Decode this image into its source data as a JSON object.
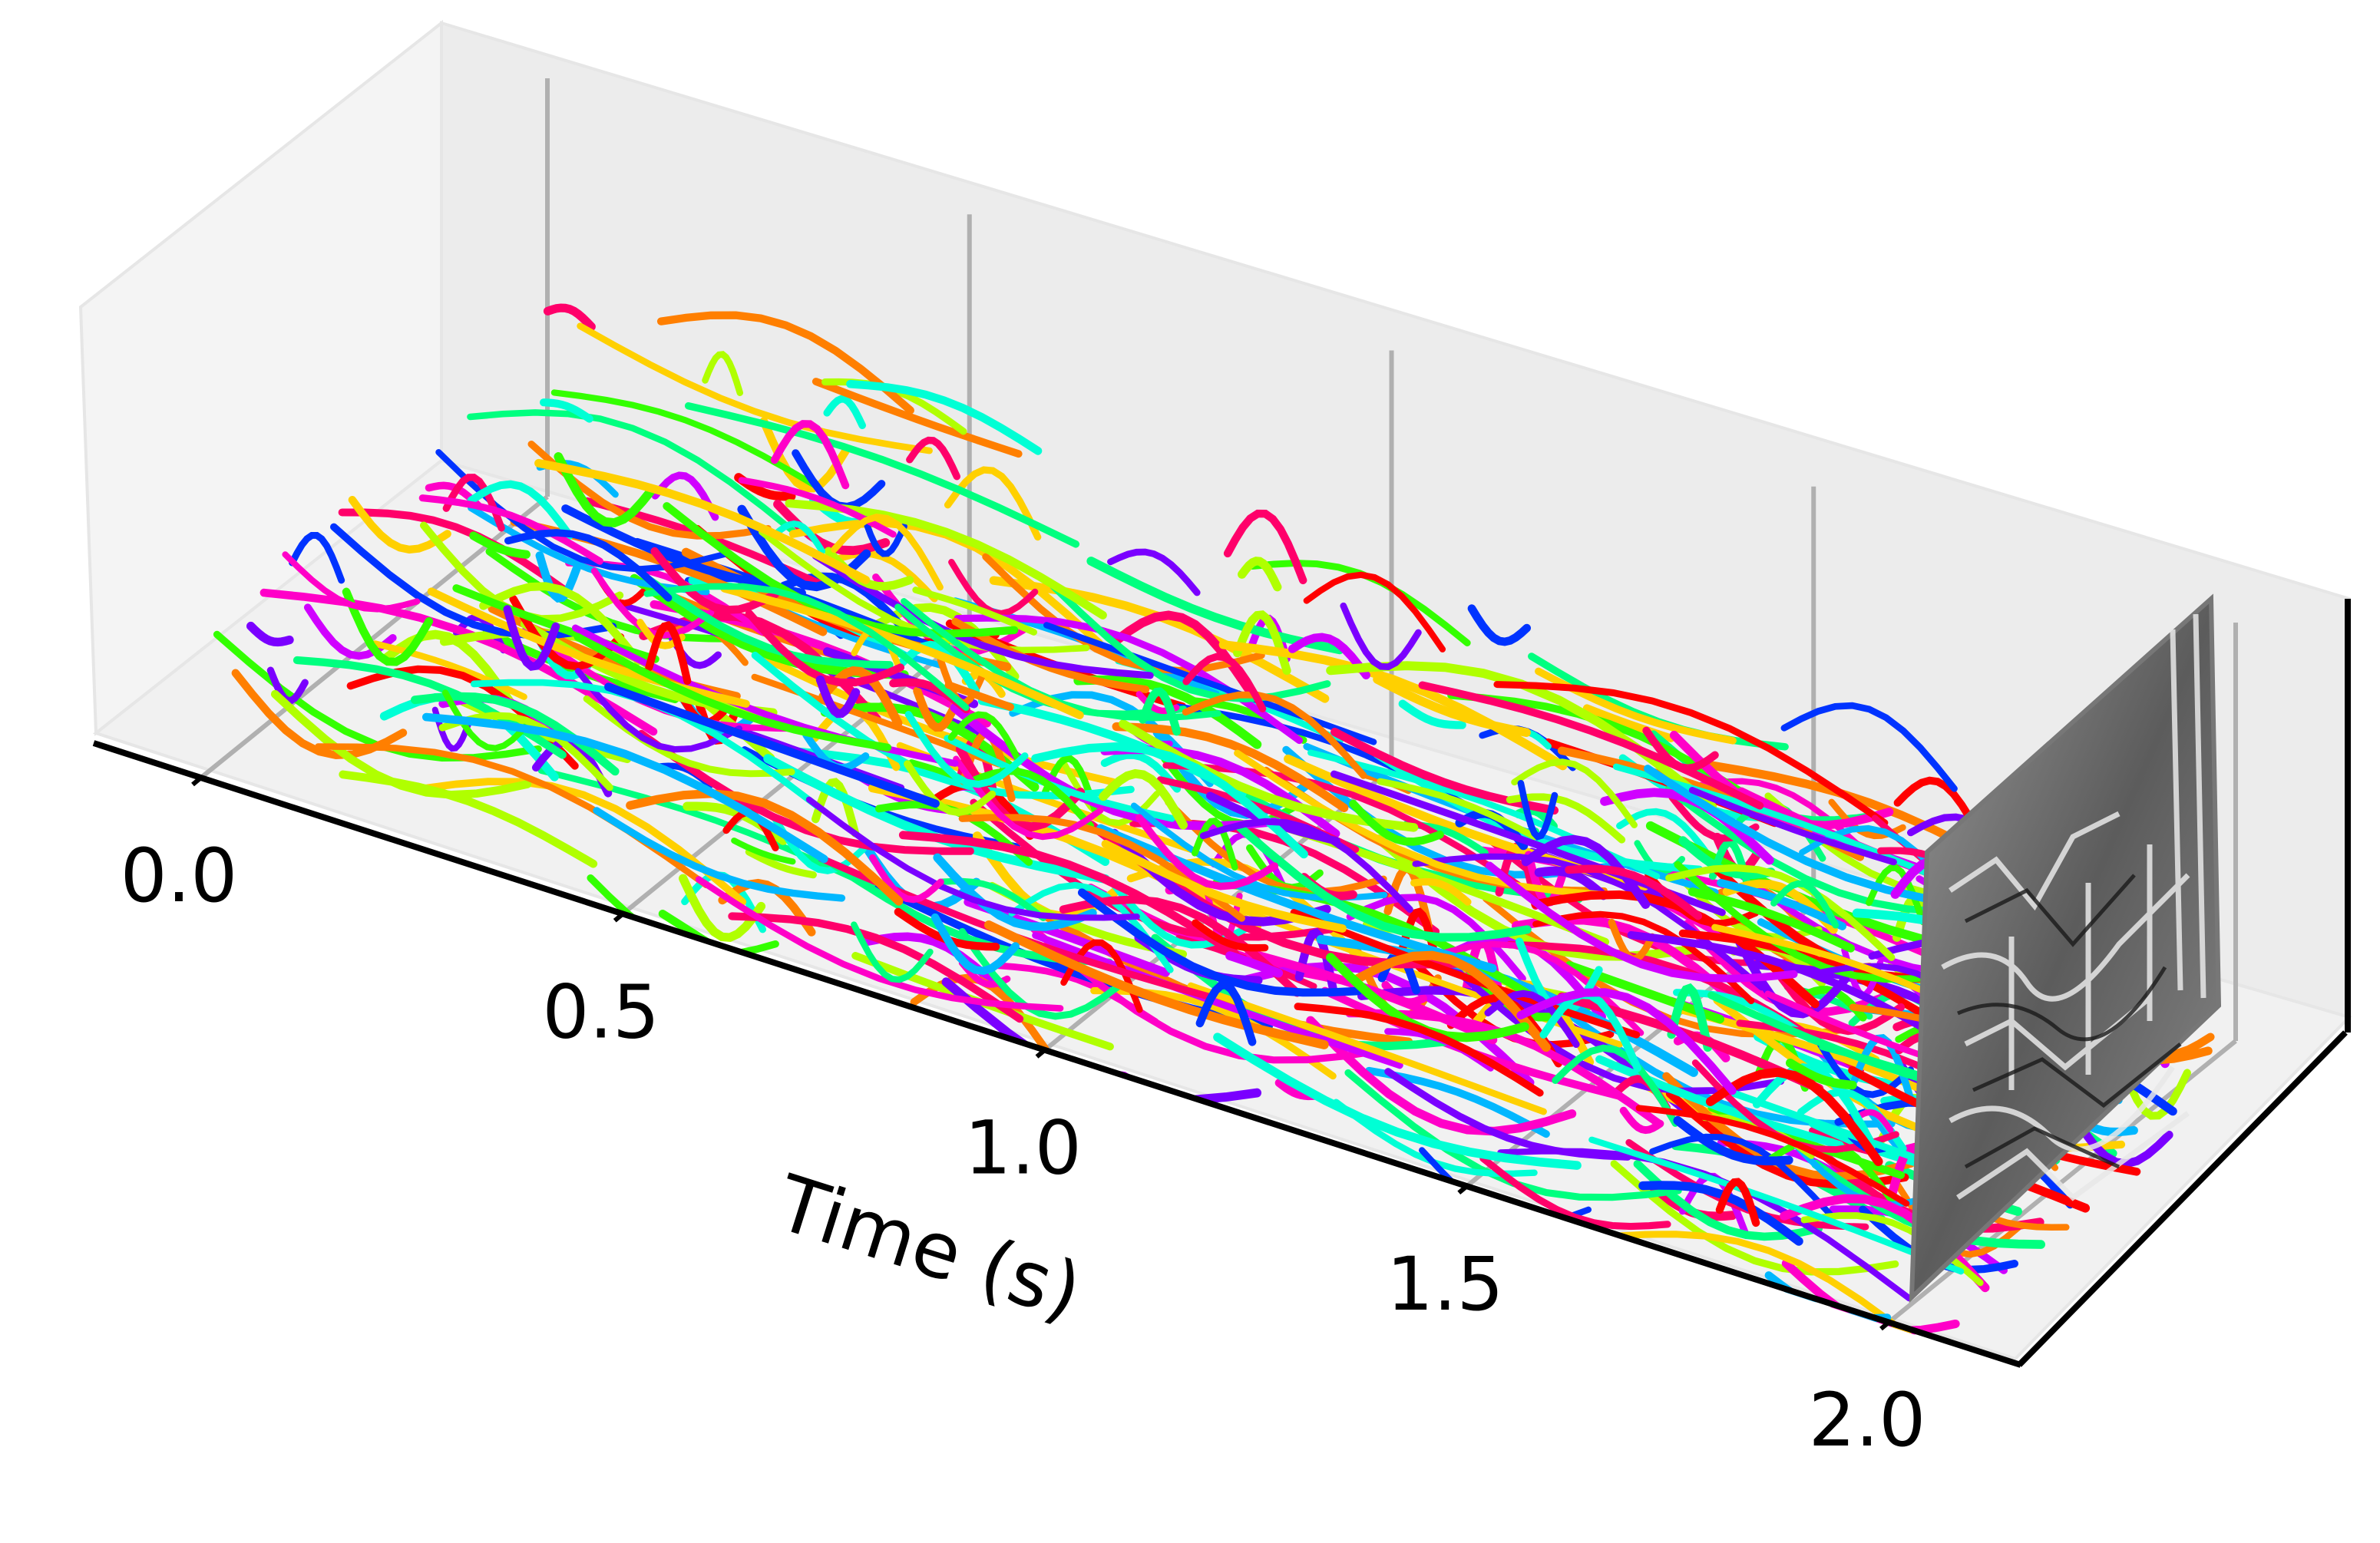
{
  "chart_data": {
    "type": "scatter",
    "description_kind": "3d-event-trajectories",
    "xlabel": "Time (s)",
    "x_ticks": [
      {
        "value": 0.0,
        "label": "0.0"
      },
      {
        "value": 0.5,
        "label": "0.5"
      },
      {
        "value": 1.0,
        "label": "1.0"
      },
      {
        "value": 1.5,
        "label": "1.5"
      },
      {
        "value": 2.0,
        "label": "2.0"
      }
    ],
    "xlim": [
      -0.13,
      2.15
    ],
    "grid": true,
    "legend": "none",
    "end_frame": {
      "time": 2.0,
      "style": "grayscale image"
    },
    "series_colors": [
      "#ff0000",
      "#ff7f00",
      "#ffd000",
      "#b0ff00",
      "#33ff00",
      "#00ff7f",
      "#00ffd5",
      "#00b7ff",
      "#0033ff",
      "#7a00ff",
      "#d000ff",
      "#ff00c8",
      "#ff006a"
    ]
  }
}
